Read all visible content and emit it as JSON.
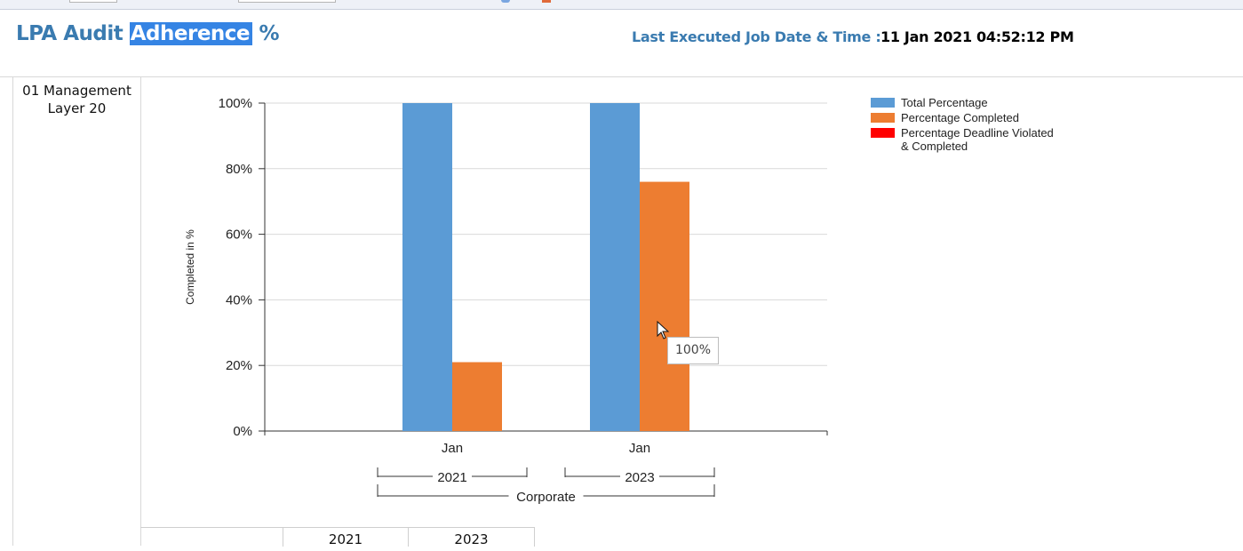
{
  "header": {
    "title_main": "LPA Audit ",
    "title_selected": "Adherence",
    "title_suffix": " %",
    "job_label": "Last Executed Job Date & Time :",
    "job_value": "11 Jan 2021 04:52:12 PM"
  },
  "row": {
    "label": "01 Management Layer 20"
  },
  "chart_data": {
    "type": "bar",
    "ylabel": "Completed in %",
    "xlabel": "",
    "ylim": [
      0,
      100
    ],
    "yticks": [
      0,
      20,
      40,
      60,
      80,
      100
    ],
    "ytick_labels": [
      "0%",
      "20%",
      "40%",
      "60%",
      "80%",
      "100%"
    ],
    "categories": [
      "Jan",
      "Jan"
    ],
    "groups": [
      "2021",
      "2023"
    ],
    "supergroup": "Corporate",
    "series": [
      {
        "name": "Total Percentage",
        "color": "#5b9bd5",
        "values": [
          100,
          100
        ]
      },
      {
        "name": "Percentage Completed",
        "color": "#ed7d31",
        "values": [
          21,
          76
        ]
      },
      {
        "name": "Percentage Deadline Violated & Completed",
        "color": "#ff0000",
        "values": [
          0,
          0
        ]
      }
    ],
    "legend_position": "top-right",
    "grid": true,
    "tooltip": "100%"
  },
  "bottom_table": {
    "headers": [
      "",
      "2021",
      "2023"
    ]
  },
  "colors": {
    "accent": "#3a7bb0",
    "selection": "#3584e4"
  }
}
